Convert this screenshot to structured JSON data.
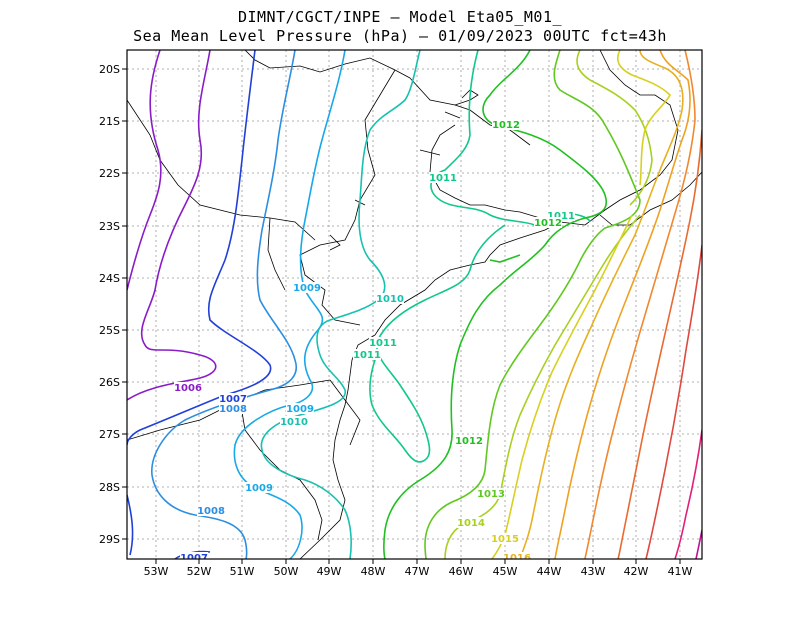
{
  "title_line1": "DIMNT/CGCT/INPE –  Model Eta05_M01_",
  "title_line2": "Sea Mean Level Pressure (hPa) – 01/09/2023 00UTC fct=43h",
  "lat_ticks": [
    "20S",
    "21S",
    "22S",
    "23S",
    "24S",
    "25S",
    "26S",
    "27S",
    "28S",
    "29S"
  ],
  "lon_ticks": [
    "53W",
    "52W",
    "51W",
    "50W",
    "49W",
    "48W",
    "47W",
    "46W",
    "45W",
    "44W",
    "43W",
    "42W",
    "41W"
  ],
  "contour_labels": [
    {
      "text": "1006",
      "color": "#8a1cc8"
    },
    {
      "text": "1007",
      "color": "#2040d8"
    },
    {
      "text": "1007",
      "color": "#2040d8"
    },
    {
      "text": "1008",
      "color": "#2c8ee0"
    },
    {
      "text": "1008",
      "color": "#2c8ee0"
    },
    {
      "text": "1009",
      "color": "#18a8e8"
    },
    {
      "text": "1009",
      "color": "#18a8e8"
    },
    {
      "text": "1009",
      "color": "#18a8e8"
    },
    {
      "text": "1010",
      "color": "#18c0b0"
    },
    {
      "text": "1010",
      "color": "#18c0b0"
    },
    {
      "text": "1011",
      "color": "#10c888"
    },
    {
      "text": "1011",
      "color": "#10c888"
    },
    {
      "text": "1011",
      "color": "#10c888"
    },
    {
      "text": "1011",
      "color": "#10c888"
    },
    {
      "text": "1012",
      "color": "#20c020"
    },
    {
      "text": "1012",
      "color": "#20c020"
    },
    {
      "text": "1012",
      "color": "#20c020"
    },
    {
      "text": "1013",
      "color": "#60c820"
    },
    {
      "text": "1014",
      "color": "#a8d020"
    },
    {
      "text": "1015",
      "color": "#d8d020"
    },
    {
      "text": "1016",
      "color": "#e8b020"
    }
  ]
}
